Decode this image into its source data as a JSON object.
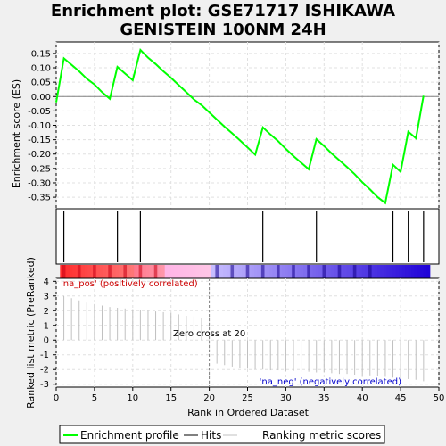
{
  "chart_data": {
    "type": "line",
    "title_line1": "Enrichment plot: GSE71717 ISHIKAWA",
    "title_line2": "GENISTEIN 100NM 24H",
    "top_panel": {
      "ylabel": "Enrichment score (ES)",
      "ylim": [
        -0.39,
        0.19
      ],
      "yticks": [
        "0.15",
        "0.10",
        "0.05",
        "0.00",
        "-0.05",
        "-0.10",
        "-0.15",
        "-0.20",
        "-0.25",
        "-0.30",
        "-0.35"
      ],
      "ytick_values": [
        0.15,
        0.1,
        0.05,
        0.0,
        -0.05,
        -0.1,
        -0.15,
        -0.2,
        -0.25,
        -0.3,
        -0.35
      ],
      "es_curve": {
        "x": [
          0,
          1,
          3,
          4,
          5,
          6,
          7,
          8,
          9,
          10,
          11,
          12,
          13,
          14,
          15,
          16,
          17,
          18,
          19,
          20,
          21,
          22,
          23,
          24,
          25,
          26,
          27,
          28,
          29,
          30,
          31,
          32,
          33,
          34,
          35,
          36,
          37,
          38,
          39,
          40,
          41,
          42,
          43,
          44,
          45,
          46,
          47,
          48
        ],
        "y": [
          -0.02,
          0.133,
          0.088,
          0.062,
          0.042,
          0.015,
          -0.008,
          0.103,
          0.08,
          0.057,
          0.162,
          0.135,
          0.113,
          0.088,
          0.065,
          0.04,
          0.015,
          -0.01,
          -0.03,
          -0.055,
          -0.08,
          -0.105,
          -0.128,
          -0.152,
          -0.177,
          -0.202,
          -0.107,
          -0.132,
          -0.155,
          -0.182,
          -0.207,
          -0.23,
          -0.253,
          -0.148,
          -0.172,
          -0.198,
          -0.222,
          -0.245,
          -0.27,
          -0.298,
          -0.323,
          -0.35,
          -0.37,
          -0.237,
          -0.262,
          -0.122,
          -0.145,
          0.003
        ]
      }
    },
    "hits": [
      1,
      8,
      11,
      27,
      34,
      44,
      46,
      48
    ],
    "bottom_panel": {
      "ylabel": "Ranked list metric (PreRanked)",
      "xlabel": "Rank in Ordered Dataset",
      "ylim": [
        -3.2,
        4.2
      ],
      "yticks": [
        "4",
        "3",
        "2",
        "1",
        "0",
        "-1",
        "-2",
        "-3"
      ],
      "ytick_values": [
        4,
        3,
        2,
        1,
        0,
        -1,
        -2,
        -3
      ],
      "metric_x": [
        1,
        2,
        3,
        4,
        5,
        6,
        7,
        8,
        9,
        10,
        11,
        12,
        13,
        14,
        15,
        16,
        17,
        18,
        19,
        20,
        21,
        22,
        23,
        24,
        25,
        26,
        27,
        28,
        29,
        30,
        31,
        32,
        33,
        34,
        35,
        36,
        37,
        38,
        39,
        40,
        41,
        42,
        43,
        44,
        45,
        46,
        47,
        48
      ],
      "metric_values": [
        3.0,
        2.85,
        2.7,
        2.55,
        2.45,
        2.35,
        2.25,
        2.2,
        2.15,
        2.1,
        2.05,
        2.0,
        1.95,
        1.9,
        1.85,
        1.75,
        1.65,
        1.6,
        1.5,
        -0.05,
        -1.6,
        -1.7,
        -1.8,
        -1.9,
        -1.95,
        -2.0,
        -2.0,
        -2.05,
        -2.05,
        -2.1,
        -2.1,
        -2.15,
        -2.15,
        -2.2,
        -2.2,
        -2.25,
        -2.3,
        -2.3,
        -2.35,
        -2.4,
        -2.4,
        -2.45,
        -2.5,
        -2.55,
        -2.6,
        -2.65,
        -2.7,
        -2.8
      ],
      "pos_label": "'na_pos' (positively correlated)",
      "neg_label": "'na_neg' (negatively correlated)",
      "zero_cross_label": "Zero cross at 20",
      "zero_cross": 20
    },
    "xlim": [
      0,
      50
    ],
    "xticks": [
      "0",
      "5",
      "10",
      "15",
      "20",
      "25",
      "30",
      "35",
      "40",
      "45",
      "50"
    ],
    "xtick_values": [
      0,
      5,
      10,
      15,
      20,
      25,
      30,
      35,
      40,
      45,
      50
    ],
    "legend": {
      "placement": "bottom",
      "entries": [
        "Enrichment profile",
        "Hits",
        "Ranking metric scores"
      ]
    },
    "colors": {
      "es_line": "#00ff00",
      "hits": "#000000",
      "metric": "#c0c0c0",
      "pos_text": "#cc0000",
      "neg_text": "#0000cc",
      "bar_pos": "#ff0000",
      "bar_neg": "#0000ff"
    }
  }
}
